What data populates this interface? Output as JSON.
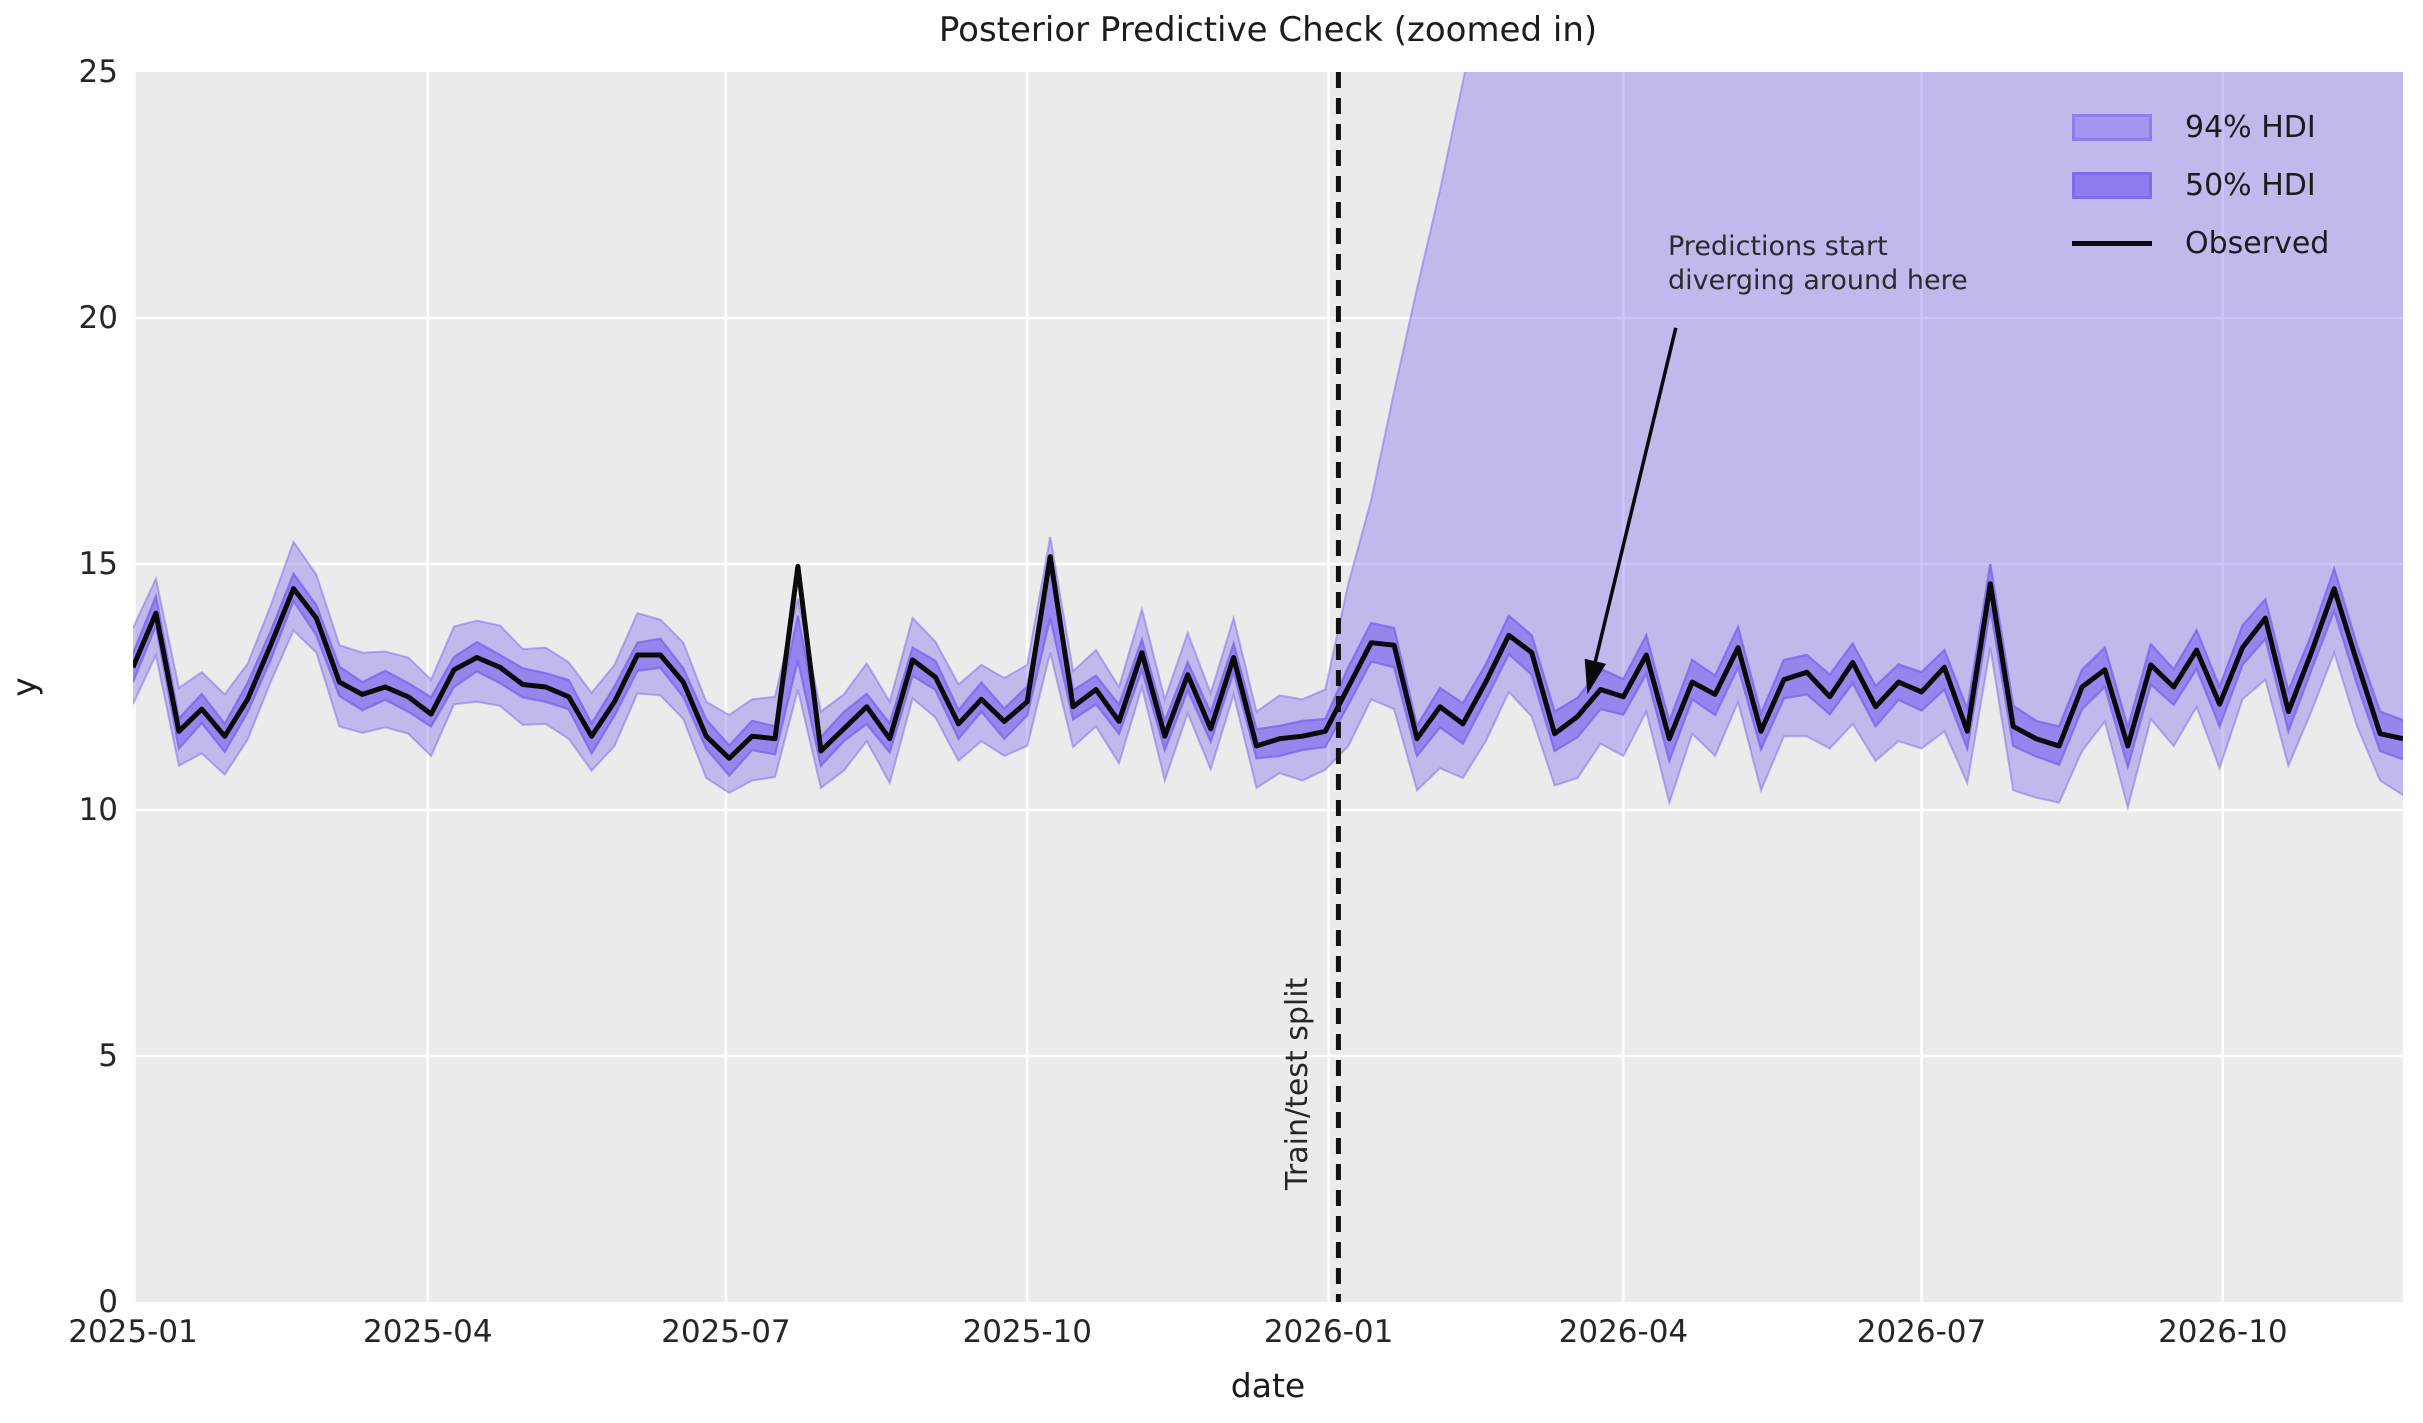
{
  "figure": {
    "title": "Posterior Predictive Check (zoomed in)",
    "xlabel": "date",
    "ylabel": "y"
  },
  "axis": {
    "ylim": [
      0,
      25
    ],
    "yticks": [
      {
        "value": 0,
        "label": "0"
      },
      {
        "value": 5,
        "label": "5"
      },
      {
        "value": 10,
        "label": "10"
      },
      {
        "value": 15,
        "label": "15"
      },
      {
        "value": 20,
        "label": "20"
      },
      {
        "value": 25,
        "label": "25"
      }
    ],
    "xlim_days": [
      0,
      693
    ],
    "xticks": [
      {
        "day": 0,
        "label": "2025-01"
      },
      {
        "day": 90,
        "label": "2025-04"
      },
      {
        "day": 181,
        "label": "2025-07"
      },
      {
        "day": 273,
        "label": "2025-10"
      },
      {
        "day": 365,
        "label": "2026-01"
      },
      {
        "day": 455,
        "label": "2026-04"
      },
      {
        "day": 546,
        "label": "2026-07"
      },
      {
        "day": 638,
        "label": "2026-10"
      }
    ]
  },
  "legend": {
    "items": [
      {
        "label": "94% HDI",
        "swatch": "patch-light"
      },
      {
        "label": "50% HDI",
        "swatch": "patch-dark"
      },
      {
        "label": "Observed",
        "swatch": "line"
      }
    ]
  },
  "split_line": {
    "day": 368,
    "label": "Train/test split"
  },
  "annotation": {
    "line1": "Predictions start",
    "line2": "diverging around here",
    "arrow_tail": {
      "day": 471,
      "y": 19.8
    },
    "arrow_tip": {
      "day": 444,
      "y": 12.35
    }
  },
  "colors": {
    "band": "#7b68ee",
    "band94_fill_alpha": 0.38,
    "band50_fill_alpha": 0.62,
    "band94_edge_alpha": 0.5,
    "band50_edge_alpha": 0.85,
    "observed": "#0a0a0a",
    "plot_background": "#ebebeb",
    "grid": "#ffffff",
    "split": "#111111"
  },
  "chart_data": {
    "type": "line",
    "title": "Posterior Predictive Check (zoomed in)",
    "xlabel": "date",
    "ylabel": "y",
    "ylim": [
      0,
      25
    ],
    "grid": true,
    "legend_position": "upper right",
    "start_date": "2025-01-01",
    "freq_days": 7,
    "n_points": 100,
    "series_names": [
      "observed",
      "hdi50_lower",
      "hdi50_upper",
      "hdi94_lower",
      "hdi94_upper"
    ],
    "observed": [
      12.9,
      14.0,
      11.6,
      12.05,
      11.5,
      12.25,
      13.35,
      14.5,
      13.9,
      12.6,
      12.35,
      12.5,
      12.3,
      11.95,
      12.85,
      13.1,
      12.9,
      12.55,
      12.5,
      12.3,
      11.5,
      12.2,
      13.15,
      13.15,
      12.6,
      11.5,
      11.05,
      11.5,
      11.45,
      14.95,
      11.2,
      11.65,
      12.1,
      11.45,
      13.05,
      12.7,
      11.75,
      12.25,
      11.8,
      12.2,
      15.15,
      12.1,
      12.45,
      11.8,
      13.2,
      11.5,
      12.75,
      11.65,
      13.1,
      11.3,
      11.45,
      11.5,
      11.6,
      12.5,
      13.4,
      13.35,
      11.45,
      12.1,
      11.75,
      12.6,
      13.55,
      13.2,
      11.55,
      11.9,
      12.45,
      12.3,
      13.15,
      11.45,
      12.6,
      12.35,
      13.3,
      11.6,
      12.65,
      12.8,
      12.3,
      13.0,
      12.1,
      12.6,
      12.4,
      12.9,
      11.6,
      14.6,
      11.7,
      11.45,
      11.3,
      12.5,
      12.85,
      11.3,
      12.95,
      12.5,
      13.25,
      12.15,
      13.3,
      13.9,
      12.0,
      13.2,
      14.5,
      13.0,
      11.55,
      11.45
    ],
    "hdi50_lower": [
      12.6,
      13.75,
      11.25,
      11.77,
      11.18,
      11.99,
      13.05,
      14.25,
      13.55,
      12.32,
      12.03,
      12.24,
      12.0,
      11.7,
      12.5,
      12.82,
      12.58,
      12.29,
      12.2,
      12.05,
      11.15,
      11.92,
      12.83,
      12.89,
      12.3,
      11.25,
      10.7,
      11.22,
      11.13,
      13.05,
      10.9,
      11.4,
      11.75,
      11.17,
      12.73,
      12.44,
      11.45,
      12.0,
      11.45,
      11.92,
      13.9,
      11.84,
      12.15,
      11.55,
      12.85,
      11.22,
      12.43,
      11.39,
      12.8,
      11.05,
      11.1,
      11.22,
      11.28,
      12.14,
      13.02,
      12.9,
      11.1,
      11.68,
      11.35,
      12.24,
      13.17,
      12.75,
      11.2,
      11.48,
      12.05,
      11.94,
      12.77,
      11.0,
      12.25,
      11.93,
      12.9,
      11.24,
      12.27,
      12.35,
      11.95,
      12.58,
      11.7,
      12.24,
      12.02,
      12.45,
      11.25,
      14.1,
      11.3,
      11.09,
      10.92,
      12.05,
      12.5,
      10.88,
      12.55,
      12.14,
      12.87,
      11.7,
      12.95,
      13.48,
      11.6,
      12.84,
      14.05,
      12.55,
      11.2,
      11.03
    ],
    "hdi50_upper": [
      13.18,
      14.34,
      11.86,
      12.36,
      11.75,
      12.58,
      13.63,
      14.8,
      14.16,
      12.91,
      12.6,
      12.83,
      12.58,
      12.29,
      13.11,
      13.41,
      13.15,
      12.88,
      12.78,
      12.64,
      11.76,
      12.51,
      13.4,
      13.48,
      12.88,
      11.84,
      11.31,
      11.81,
      11.7,
      13.95,
      11.48,
      11.99,
      12.36,
      11.76,
      13.3,
      13.03,
      12.03,
      12.59,
      12.06,
      12.51,
      15.0,
      12.43,
      12.73,
      12.14,
      13.46,
      11.81,
      13.0,
      11.98,
      13.38,
      11.64,
      11.71,
      11.81,
      11.85,
      12.9,
      13.8,
      13.7,
      11.71,
      12.48,
      12.17,
      12.96,
      13.95,
      13.55,
      12.0,
      12.28,
      12.87,
      12.66,
      13.55,
      11.8,
      13.05,
      12.73,
      13.72,
      11.96,
      13.05,
      13.15,
      12.75,
      13.38,
      12.52,
      12.96,
      12.8,
      13.25,
      12.05,
      15.0,
      12.12,
      11.81,
      11.7,
      12.85,
      13.3,
      11.68,
      13.37,
      12.86,
      13.65,
      12.5,
      13.75,
      14.28,
      12.42,
      13.56,
      14.9,
      13.35,
      12.0,
      11.83
    ],
    "hdi94_lower": [
      12.15,
      13.15,
      10.9,
      11.15,
      10.72,
      11.43,
      12.6,
      13.65,
      13.2,
      11.7,
      11.57,
      11.68,
      11.55,
      11.1,
      12.15,
      12.2,
      12.12,
      11.73,
      11.75,
      11.45,
      10.8,
      11.3,
      12.37,
      12.33,
      11.85,
      10.65,
      10.35,
      10.6,
      10.67,
      12.45,
      10.45,
      10.8,
      11.4,
      10.55,
      12.27,
      11.88,
      11.0,
      11.4,
      11.1,
      11.3,
      13.2,
      11.28,
      11.7,
      10.95,
      12.5,
      10.6,
      11.97,
      10.83,
      12.35,
      10.45,
      10.75,
      10.6,
      10.82,
      11.3,
      12.25,
      12.05,
      10.4,
      10.85,
      10.65,
      11.4,
      12.4,
      11.9,
      10.5,
      10.65,
      11.35,
      11.1,
      12.0,
      10.15,
      11.55,
      11.1,
      12.2,
      10.4,
      11.5,
      11.5,
      11.25,
      11.75,
      11.0,
      11.4,
      11.25,
      11.6,
      10.55,
      13.3,
      10.4,
      10.25,
      10.15,
      11.2,
      11.8,
      10.05,
      11.85,
      11.3,
      12.1,
      10.85,
      12.25,
      12.65,
      10.9,
      12.0,
      13.2,
      11.7,
      10.6,
      10.3
    ],
    "hdi94_upper": [
      13.7,
      14.7,
      12.48,
      12.8,
      12.35,
      12.97,
      14.15,
      15.45,
      14.78,
      13.35,
      13.2,
      13.22,
      13.1,
      12.65,
      13.73,
      13.85,
      13.75,
      13.27,
      13.3,
      13.0,
      12.38,
      12.95,
      14.0,
      13.87,
      13.4,
      12.2,
      11.93,
      12.25,
      12.3,
      14.3,
      12.0,
      12.35,
      12.98,
      12.2,
      13.9,
      13.42,
      12.55,
      12.95,
      12.68,
      12.95,
      15.55,
      12.82,
      13.25,
      12.5,
      14.08,
      12.25,
      13.6,
      12.37,
      13.9,
      12.0,
      12.33,
      12.25,
      12.45,
      14.6,
      16.3,
      18.5,
      20.6,
      22.6,
      24.8,
      27.0,
      28.0,
      28.0,
      28.0,
      28.0,
      28.0,
      28.0,
      28.0,
      28.0,
      28.0,
      28.0,
      28.0,
      28.0,
      28.0,
      28.0,
      28.0,
      28.0,
      28.0,
      28.0,
      28.0,
      28.0,
      28.0,
      28.0,
      28.0,
      28.0,
      28.0,
      28.0,
      28.0,
      28.0,
      28.0,
      28.0,
      28.0,
      28.0,
      28.0,
      28.0,
      28.0,
      28.0,
      28.0,
      28.0,
      28.0,
      28.0
    ]
  }
}
